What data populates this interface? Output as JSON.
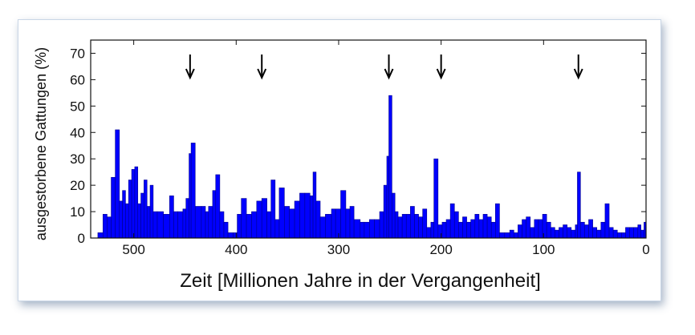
{
  "chart_data": {
    "type": "bar",
    "xlabel": "Zeit [Millionen Jahre in der Vergangenheit]",
    "ylabel": "ausgestorbene Gattungen (%)",
    "xlim": [
      542,
      0
    ],
    "ylim": [
      0,
      75
    ],
    "x_ticks": [
      500,
      400,
      300,
      200,
      100,
      0
    ],
    "y_ticks": [
      0,
      10,
      20,
      30,
      40,
      50,
      60,
      70
    ],
    "grid": false,
    "bar_color": "#0000ff",
    "bar_edge_color": "#00008b",
    "arrows_at": [
      445,
      375,
      251,
      200,
      66
    ],
    "bars": [
      [
        535,
        2
      ],
      [
        530,
        9
      ],
      [
        526,
        8
      ],
      [
        522,
        23
      ],
      [
        518,
        41
      ],
      [
        514,
        14
      ],
      [
        511,
        18
      ],
      [
        508,
        13
      ],
      [
        505,
        22
      ],
      [
        502,
        26
      ],
      [
        499,
        27
      ],
      [
        496,
        13
      ],
      [
        493,
        17
      ],
      [
        490,
        22
      ],
      [
        487,
        12
      ],
      [
        484,
        20
      ],
      [
        481,
        10
      ],
      [
        477,
        10
      ],
      [
        471,
        9
      ],
      [
        465,
        16
      ],
      [
        461,
        10
      ],
      [
        457,
        10
      ],
      [
        452,
        11
      ],
      [
        449,
        15
      ],
      [
        446,
        32
      ],
      [
        444,
        36
      ],
      [
        440,
        12
      ],
      [
        434,
        12
      ],
      [
        430,
        10
      ],
      [
        427,
        12
      ],
      [
        423,
        18
      ],
      [
        420,
        24
      ],
      [
        416,
        10
      ],
      [
        412,
        6
      ],
      [
        408,
        2
      ],
      [
        403,
        2
      ],
      [
        399,
        9
      ],
      [
        395,
        15
      ],
      [
        390,
        9
      ],
      [
        385,
        10
      ],
      [
        380,
        14
      ],
      [
        375,
        15
      ],
      [
        370,
        10
      ],
      [
        366,
        22
      ],
      [
        362,
        7
      ],
      [
        358,
        19
      ],
      [
        353,
        12
      ],
      [
        348,
        11
      ],
      [
        343,
        14
      ],
      [
        338,
        17
      ],
      [
        333,
        17
      ],
      [
        328,
        16
      ],
      [
        325,
        25
      ],
      [
        322,
        14
      ],
      [
        318,
        8
      ],
      [
        313,
        9
      ],
      [
        307,
        11
      ],
      [
        303,
        11
      ],
      [
        298,
        18
      ],
      [
        293,
        11
      ],
      [
        289,
        12
      ],
      [
        285,
        7
      ],
      [
        279,
        6
      ],
      [
        275,
        6
      ],
      [
        270,
        7
      ],
      [
        265,
        7
      ],
      [
        260,
        10
      ],
      [
        256,
        20
      ],
      [
        253,
        31
      ],
      [
        251,
        54
      ],
      [
        248,
        17
      ],
      [
        245,
        10
      ],
      [
        242,
        8
      ],
      [
        238,
        9
      ],
      [
        234,
        9
      ],
      [
        230,
        12
      ],
      [
        226,
        9
      ],
      [
        222,
        8
      ],
      [
        218,
        11
      ],
      [
        214,
        4
      ],
      [
        210,
        6
      ],
      [
        207,
        30
      ],
      [
        203,
        5
      ],
      [
        199,
        6
      ],
      [
        195,
        7
      ],
      [
        191,
        13
      ],
      [
        187,
        10
      ],
      [
        183,
        6
      ],
      [
        179,
        8
      ],
      [
        175,
        6
      ],
      [
        171,
        7
      ],
      [
        167,
        9
      ],
      [
        163,
        7
      ],
      [
        159,
        9
      ],
      [
        155,
        8
      ],
      [
        151,
        6
      ],
      [
        147,
        13
      ],
      [
        143,
        2
      ],
      [
        138,
        2
      ],
      [
        133,
        3
      ],
      [
        129,
        2
      ],
      [
        125,
        5
      ],
      [
        121,
        7
      ],
      [
        117,
        8
      ],
      [
        113,
        4
      ],
      [
        109,
        7
      ],
      [
        105,
        7
      ],
      [
        101,
        9
      ],
      [
        97,
        6
      ],
      [
        93,
        4
      ],
      [
        89,
        3
      ],
      [
        85,
        4
      ],
      [
        81,
        5
      ],
      [
        77,
        4
      ],
      [
        73,
        3
      ],
      [
        69,
        5
      ],
      [
        67,
        25
      ],
      [
        64,
        6
      ],
      [
        60,
        5
      ],
      [
        56,
        7
      ],
      [
        52,
        4
      ],
      [
        48,
        3
      ],
      [
        44,
        6
      ],
      [
        40,
        13
      ],
      [
        36,
        4
      ],
      [
        32,
        3
      ],
      [
        28,
        2
      ],
      [
        24,
        2
      ],
      [
        20,
        4
      ],
      [
        16,
        4
      ],
      [
        12,
        4
      ],
      [
        8,
        5
      ],
      [
        5,
        3
      ],
      [
        2,
        6
      ]
    ]
  }
}
